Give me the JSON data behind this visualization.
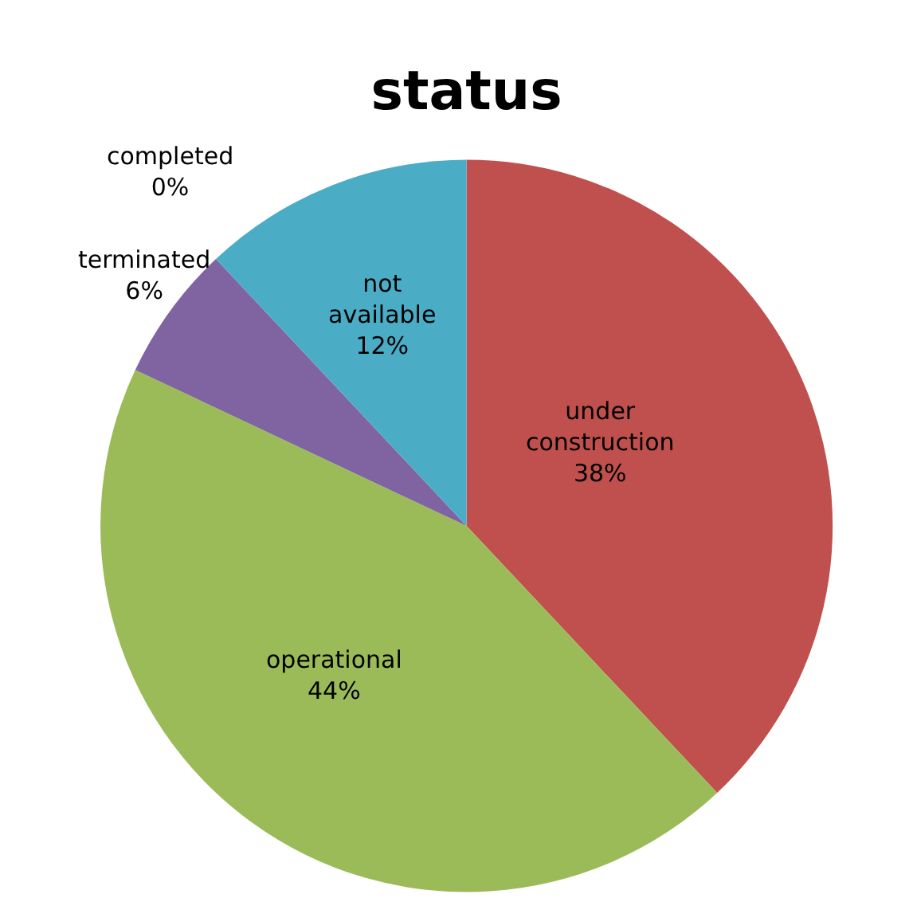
{
  "chart_data": {
    "type": "pie",
    "title": "status",
    "categories": [
      "under construction",
      "operational",
      "terminated",
      "completed",
      "not available"
    ],
    "values": [
      38,
      44,
      6,
      0,
      12
    ],
    "value_labels": [
      "38%",
      "44%",
      "6%",
      "0%",
      "12%"
    ],
    "colors": [
      "#c0504d",
      "#9bbb59",
      "#8064a2",
      "#f79646",
      "#4bacc6"
    ],
    "legend": false
  }
}
